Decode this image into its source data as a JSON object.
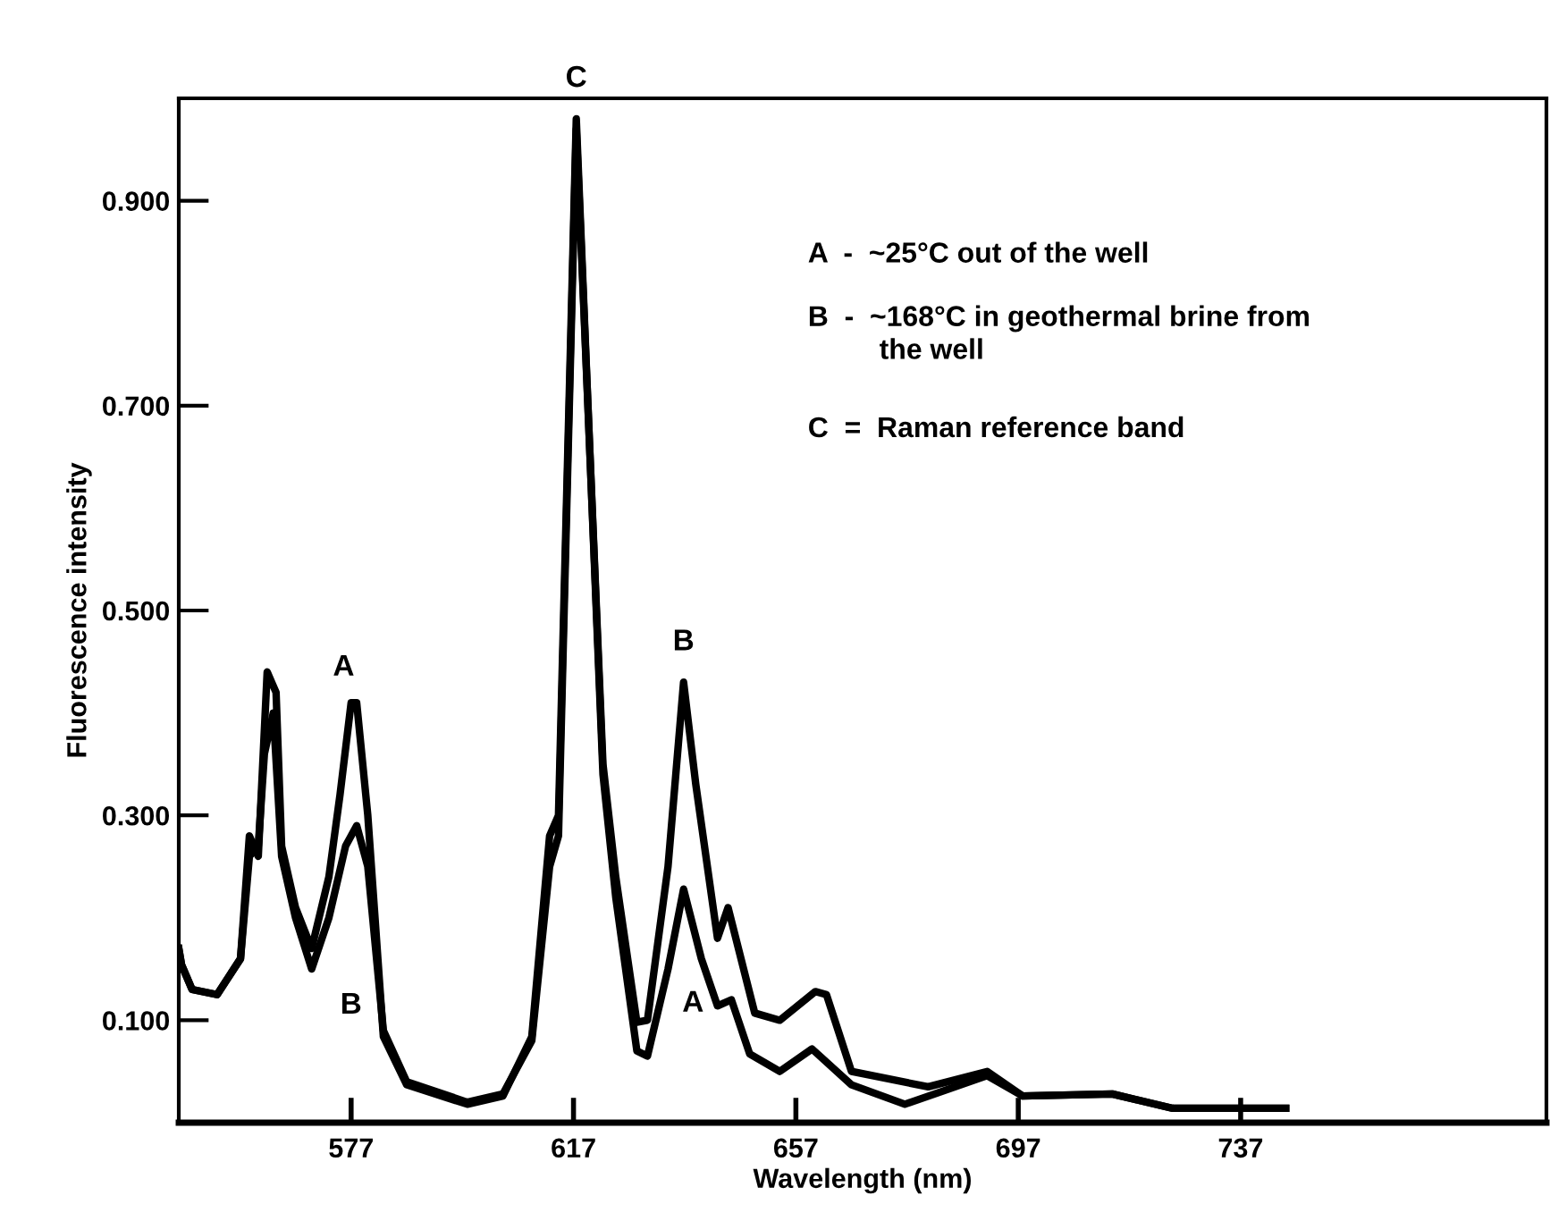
{
  "chart_data": {
    "type": "line",
    "xlabel": "Wavelength (nm)",
    "ylabel": "Fluorescence intensity",
    "xlim": [
      546,
      792
    ],
    "ylim": [
      0,
      1.0
    ],
    "xticks": [
      577,
      617,
      657,
      697,
      737
    ],
    "yticks": [
      {
        "value": 0.1,
        "label": "0.100"
      },
      {
        "value": 0.3,
        "label": "0.300"
      },
      {
        "value": 0.5,
        "label": "0.500"
      },
      {
        "value": 0.7,
        "label": "0.700"
      },
      {
        "value": 0.9,
        "label": "0.900"
      }
    ],
    "grid": false,
    "marker": "none",
    "line_style": "solid",
    "series": [
      {
        "color": "#000000",
        "x": [
          546,
          546.5,
          548.4,
          552.9,
          557.1,
          558.7,
          560.3,
          561.9,
          563.5,
          564.5,
          567,
          569.9,
          573,
          575,
          577,
          578,
          580,
          582.8,
          587,
          597.9,
          604.3,
          609.5,
          612.7,
          614.3,
          617.5,
          622.3,
          624.6,
          628.4,
          630.3,
          634,
          636.8,
          640,
          642.9,
          645.4,
          648.7,
          654.1,
          659.9,
          667,
          676.6,
          683,
          691.4,
          697.8,
          713.9,
          724.8,
          745.1
        ],
        "values": [
          0.17,
          0.154,
          0.13,
          0.125,
          0.16,
          0.28,
          0.26,
          0.44,
          0.42,
          0.27,
          0.21,
          0.17,
          0.24,
          0.32,
          0.41,
          0.41,
          0.3,
          0.084,
          0.037,
          0.018,
          0.026,
          0.084,
          0.28,
          0.3,
          0.98,
          0.34,
          0.22,
          0.07,
          0.065,
          0.15,
          0.228,
          0.16,
          0.114,
          0.12,
          0.067,
          0.05,
          0.072,
          0.037,
          0.018,
          0.03,
          0.046,
          0.026,
          0.028,
          0.014,
          0.014
        ]
      },
      {
        "color": "#000000",
        "x": [
          546,
          546.5,
          548.4,
          552.9,
          557.1,
          558.7,
          560.3,
          561.4,
          563,
          564.5,
          567,
          569.9,
          573,
          576,
          578,
          580,
          582.8,
          587,
          597.9,
          604.3,
          609.5,
          612.7,
          614.3,
          617.5,
          622.3,
          624.6,
          628.4,
          630.3,
          634,
          636.8,
          639,
          642.9,
          644.8,
          649.6,
          654.1,
          660.5,
          662.5,
          667,
          680.8,
          691.4,
          697.8,
          713.9,
          724.8,
          745.1
        ],
        "values": [
          0.17,
          0.154,
          0.13,
          0.125,
          0.16,
          0.26,
          0.27,
          0.36,
          0.4,
          0.26,
          0.2,
          0.15,
          0.2,
          0.27,
          0.29,
          0.25,
          0.09,
          0.04,
          0.02,
          0.028,
          0.08,
          0.25,
          0.28,
          0.97,
          0.35,
          0.24,
          0.098,
          0.1,
          0.25,
          0.43,
          0.33,
          0.18,
          0.21,
          0.107,
          0.1,
          0.128,
          0.125,
          0.05,
          0.035,
          0.05,
          0.026,
          0.028,
          0.014,
          0.014
        ]
      }
    ],
    "annotations": [
      {
        "text": "A",
        "x": 577,
        "y": 0.41
      },
      "B",
      {
        "text": "C",
        "x": 617.5,
        "y": 0.98
      },
      {
        "text": "B",
        "x": 636.8,
        "y": 0.43
      },
      "A",
      "A  -  ~25°C out of the well",
      "B  -  ~168°C in geothermal brine from\n         the well",
      "C  =  Raman reference band"
    ]
  }
}
